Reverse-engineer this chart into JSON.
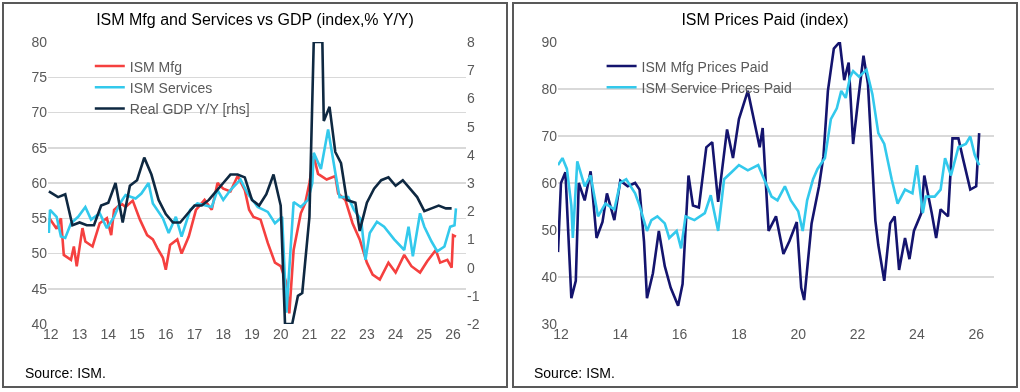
{
  "chart_data": [
    {
      "type": "line",
      "title": "ISM Mfg and Services vs GDP (index,% Y/Y)",
      "grid": "y",
      "legend": "top left",
      "xlim": [
        2011.9,
        2026.45
      ],
      "xticks": [
        {
          "value": 2012,
          "label": "12"
        },
        {
          "value": 2013,
          "label": "13"
        },
        {
          "value": 2014,
          "label": "14"
        },
        {
          "value": 2015,
          "label": "15"
        },
        {
          "value": 2016,
          "label": "16"
        },
        {
          "value": 2017,
          "label": "17"
        },
        {
          "value": 2018,
          "label": "18"
        },
        {
          "value": 2019,
          "label": "19"
        },
        {
          "value": 2020,
          "label": "20"
        },
        {
          "value": 2021,
          "label": "21"
        },
        {
          "value": 2022,
          "label": "22"
        },
        {
          "value": 2023,
          "label": "23"
        },
        {
          "value": 2024,
          "label": "24"
        },
        {
          "value": 2025,
          "label": "25"
        },
        {
          "value": 2026,
          "label": "26"
        }
      ],
      "ylim": [
        40,
        80
      ],
      "yticks": [
        40,
        45,
        50,
        55,
        60,
        65,
        70,
        75,
        80
      ],
      "y2lim": [
        -2,
        8
      ],
      "y2ticks": [
        -2,
        -1,
        0,
        1,
        2,
        3,
        4,
        5,
        6,
        7,
        8
      ],
      "series": [
        {
          "name": "ISM Mfg",
          "color": "#f5403f",
          "x": [
            2011.95,
            2012.2,
            2012.35,
            2012.45,
            2012.7,
            2012.8,
            2012.9,
            2013.1,
            2013.2,
            2013.45,
            2013.7,
            2013.95,
            2014.1,
            2014.2,
            2014.45,
            2014.6,
            2014.85,
            2015.1,
            2015.35,
            2015.55,
            2015.7,
            2015.9,
            2016,
            2016.15,
            2016.4,
            2016.55,
            2016.8,
            2017.05,
            2017.35,
            2017.6,
            2017.8,
            2018,
            2018.25,
            2018.5,
            2018.75,
            2018.9,
            2019.05,
            2019.3,
            2019.55,
            2019.8,
            2020,
            2020.2,
            2020.3,
            2020.45,
            2020.7,
            2020.85,
            2021,
            2021.15,
            2021.3,
            2021.6,
            2021.9,
            2022,
            2022.25,
            2022.5,
            2022.75,
            2023,
            2023.2,
            2023.45,
            2023.75,
            2024,
            2024.3,
            2024.55,
            2024.85,
            2025.1,
            2025.4,
            2025.55,
            2025.8,
            2025.95,
            2026,
            2026.1
          ],
          "values": [
            55,
            53.5,
            55,
            49.8,
            49.1,
            51,
            48.2,
            53.6,
            51.7,
            51,
            54.3,
            55,
            52.6,
            56.2,
            57.1,
            56.6,
            57.5,
            54.8,
            52.6,
            52,
            50.8,
            49.4,
            47.7,
            51.2,
            52,
            50,
            52.4,
            56.2,
            57.6,
            56.2,
            60,
            59.2,
            58.8,
            61,
            59,
            56.2,
            55.2,
            54.8,
            51.5,
            48.7,
            48.2,
            45.8,
            41.5,
            50.5,
            55.7,
            57.1,
            60,
            63.8,
            61.3,
            60.5,
            61,
            58.5,
            57.6,
            54.3,
            52,
            48.7,
            47,
            46.3,
            48.7,
            47.3,
            49.8,
            48.2,
            47.3,
            48.9,
            50.5,
            48.7,
            49.1,
            48,
            52.6,
            52.4
          ]
        },
        {
          "name": "ISM Services",
          "color": "#33c9ec",
          "x": [
            2011.93,
            2011.97,
            2012.2,
            2012.35,
            2012.5,
            2012.7,
            2012.95,
            2013.2,
            2013.4,
            2013.7,
            2013.95,
            2014.2,
            2014.4,
            2014.6,
            2014.95,
            2015.15,
            2015.4,
            2015.55,
            2015.9,
            2016.1,
            2016.35,
            2016.55,
            2016.85,
            2017.1,
            2017.6,
            2017.8,
            2018,
            2018.25,
            2018.6,
            2018.85,
            2019.2,
            2019.55,
            2019.8,
            2020.05,
            2020.2,
            2020.45,
            2020.7,
            2020.95,
            2021.1,
            2021.15,
            2021.4,
            2021.65,
            2021.9,
            2022.05,
            2022.35,
            2022.55,
            2022.8,
            2022.95,
            2023.1,
            2023.35,
            2023.6,
            2023.95,
            2024.3,
            2024.45,
            2024.6,
            2024.85,
            2025,
            2025.25,
            2025.45,
            2025.7,
            2025.9,
            2026.05,
            2026.1
          ],
          "values": [
            52.9,
            56.2,
            55.2,
            52.4,
            52.2,
            54.3,
            55.2,
            56.6,
            54.8,
            55.7,
            53.6,
            55.2,
            57.1,
            58.3,
            57.8,
            58.5,
            60,
            57.1,
            55,
            52.9,
            55.2,
            52.4,
            56.2,
            57.1,
            56.6,
            59,
            57.6,
            59,
            60.5,
            58.5,
            56.6,
            55.9,
            54.3,
            55.2,
            41.6,
            57.3,
            56.6,
            57.6,
            60,
            64.3,
            62,
            67.6,
            61.5,
            58,
            58,
            56.2,
            54.8,
            49.1,
            52.9,
            54.5,
            53.8,
            52,
            50.5,
            53.8,
            49.6,
            55.7,
            53.8,
            51.7,
            50.3,
            51,
            53.8,
            54,
            56.4
          ]
        },
        {
          "name": "Real GDP Y/Y [rhs]",
          "color": "#0e2841",
          "axis": "y2",
          "x": [
            2011.93,
            2012.25,
            2012.5,
            2012.75,
            2013,
            2013.25,
            2013.5,
            2013.75,
            2014,
            2014.25,
            2014.5,
            2014.75,
            2015,
            2015.25,
            2015.5,
            2015.75,
            2016,
            2016.25,
            2016.5,
            2016.75,
            2017,
            2017.25,
            2017.5,
            2017.75,
            2018,
            2018.25,
            2018.5,
            2018.75,
            2019,
            2019.25,
            2019.5,
            2019.75,
            2020,
            2020.15,
            2020.4,
            2020.6,
            2020.75,
            2021,
            2021.15,
            2021.45,
            2021.5,
            2021.7,
            2021.9,
            2022.1,
            2022.3,
            2022.6,
            2022.75,
            2023,
            2023.25,
            2023.5,
            2023.75,
            2024,
            2024.25,
            2024.5,
            2024.75,
            2025,
            2025.25,
            2025.5,
            2025.75,
            2025.95
          ],
          "values": [
            2.7,
            2.5,
            2.6,
            1.5,
            1.6,
            1.5,
            1.5,
            2.2,
            2.3,
            3.0,
            1.6,
            2.9,
            3.1,
            3.9,
            3.3,
            2.4,
            1.9,
            1.6,
            1.6,
            1.9,
            2.2,
            2.2,
            2.4,
            2.7,
            3.0,
            3.3,
            3.3,
            3.2,
            2.4,
            2.2,
            2.6,
            3.3,
            2.2,
            -2,
            -2,
            -1.0,
            -0.9,
            1.8,
            8,
            8,
            5.2,
            5.7,
            4.1,
            3.7,
            2.4,
            2.3,
            1.3,
            2.3,
            2.8,
            3.1,
            3.2,
            2.9,
            3.1,
            2.8,
            2.5,
            2.0,
            2.1,
            2.2,
            2.1,
            2.1
          ]
        }
      ],
      "annotations": [
        "Source: ISM."
      ]
    },
    {
      "type": "line",
      "title": "ISM Prices Paid (index)",
      "grid": "y",
      "legend": "top left",
      "xlim": [
        2011.9,
        2026.6
      ],
      "xticks": [
        {
          "value": 2012,
          "label": "12"
        },
        {
          "value": 2014,
          "label": "14"
        },
        {
          "value": 2016,
          "label": "16"
        },
        {
          "value": 2018,
          "label": "18"
        },
        {
          "value": 2020,
          "label": "20"
        },
        {
          "value": 2022,
          "label": "22"
        },
        {
          "value": 2024,
          "label": "24"
        },
        {
          "value": 2026,
          "label": "26"
        }
      ],
      "ylim": [
        30,
        90
      ],
      "yticks": [
        30,
        40,
        50,
        60,
        70,
        80,
        90
      ],
      "series": [
        {
          "name": "ISM Mfg Prices Paid",
          "color": "#14146e",
          "x": [
            2011.9,
            2012,
            2012.15,
            2012.35,
            2012.5,
            2012.6,
            2012.8,
            2013,
            2013.2,
            2013.4,
            2013.55,
            2013.8,
            2014,
            2014.25,
            2014.5,
            2014.65,
            2014.8,
            2014.9,
            2015.1,
            2015.3,
            2015.5,
            2015.7,
            2015.95,
            2016.1,
            2016.3,
            2016.45,
            2016.65,
            2016.9,
            2017.1,
            2017.3,
            2017.6,
            2017.8,
            2018,
            2018.3,
            2018.5,
            2018.7,
            2018.8,
            2019,
            2019.25,
            2019.5,
            2019.7,
            2019.95,
            2020.1,
            2020.2,
            2020.45,
            2020.7,
            2020.85,
            2021,
            2021.2,
            2021.4,
            2021.55,
            2021.7,
            2021.85,
            2022,
            2022.2,
            2022.35,
            2022.6,
            2022.7,
            2022.9,
            2023.1,
            2023.25,
            2023.4,
            2023.6,
            2023.75,
            2023.9,
            2024.15,
            2024.25,
            2024.5,
            2024.65,
            2024.8,
            2025.05,
            2025.2,
            2025.4,
            2025.55,
            2025.8,
            2026,
            2026.1
          ],
          "values": [
            45.3,
            60,
            62.3,
            35.5,
            39.2,
            60,
            56.3,
            62.5,
            48.3,
            51.7,
            57.8,
            52.1,
            60.5,
            59.3,
            60,
            58.6,
            47.6,
            35.5,
            40.8,
            49.8,
            42.3,
            37.7,
            33.9,
            38.5,
            61.6,
            55.2,
            54.8,
            67.6,
            68.7,
            56,
            71.4,
            65.3,
            73.6,
            79.6,
            73.6,
            67.6,
            71.7,
            49.8,
            52.9,
            44.9,
            47.6,
            51.7,
            37.7,
            35.1,
            51.4,
            59.3,
            65.7,
            79.6,
            88.6,
            90,
            81.9,
            85.6,
            68.3,
            76.6,
            87.1,
            81.1,
            52,
            46.8,
            39.2,
            51.4,
            52.9,
            41.5,
            48.3,
            43.8,
            49.8,
            53.6,
            61.6,
            53.6,
            48.3,
            54.4,
            52.9,
            69.5,
            69.5,
            65.3,
            58.6,
            59.3,
            70.6
          ]
        },
        {
          "name": "ISM Service Prices Paid",
          "color": "#33c9ec",
          "x": [
            2011.9,
            2012.05,
            2012.2,
            2012.35,
            2012.4,
            2012.55,
            2012.8,
            2013,
            2013.25,
            2013.5,
            2013.8,
            2014,
            2014.2,
            2014.5,
            2014.65,
            2014.9,
            2015.05,
            2015.25,
            2015.5,
            2015.65,
            2015.9,
            2016.05,
            2016.2,
            2016.5,
            2016.85,
            2017.05,
            2017.3,
            2017.5,
            2017.75,
            2018,
            2018.3,
            2018.65,
            2018.85,
            2019.1,
            2019.3,
            2019.55,
            2019.75,
            2020,
            2020.15,
            2020.3,
            2020.5,
            2020.65,
            2020.9,
            2021.1,
            2021.3,
            2021.45,
            2021.6,
            2021.75,
            2021.85,
            2022.05,
            2022.3,
            2022.5,
            2022.7,
            2022.9,
            2023.15,
            2023.35,
            2023.6,
            2023.85,
            2024,
            2024.2,
            2024.3,
            2024.6,
            2024.8,
            2024.95,
            2025.15,
            2025.4,
            2025.65,
            2025.8,
            2025.95,
            2026.1
          ],
          "values": [
            63.8,
            65.3,
            63,
            55.2,
            48.3,
            64.6,
            59.3,
            61.6,
            52.9,
            55.6,
            54.4,
            60.1,
            60.8,
            57.8,
            55.2,
            49.8,
            52.1,
            52.9,
            51.4,
            48.3,
            49.8,
            46.1,
            52.9,
            52.1,
            53.6,
            57.4,
            49.8,
            60.8,
            62.3,
            63.8,
            62.7,
            63.8,
            60.8,
            57.1,
            56.3,
            59.3,
            56.3,
            54,
            49.8,
            56.3,
            60.8,
            63,
            65.3,
            73.6,
            75.9,
            79.6,
            78.1,
            82.6,
            83.8,
            82.6,
            84.1,
            78.9,
            70.6,
            68.3,
            60.8,
            55.6,
            58.6,
            57.8,
            63.8,
            53.6,
            57.1,
            57.1,
            58.6,
            65.3,
            61.6,
            67.6,
            68.3,
            69.9,
            66,
            63.8
          ]
        }
      ],
      "annotations": [
        "Source: ISM."
      ]
    }
  ]
}
